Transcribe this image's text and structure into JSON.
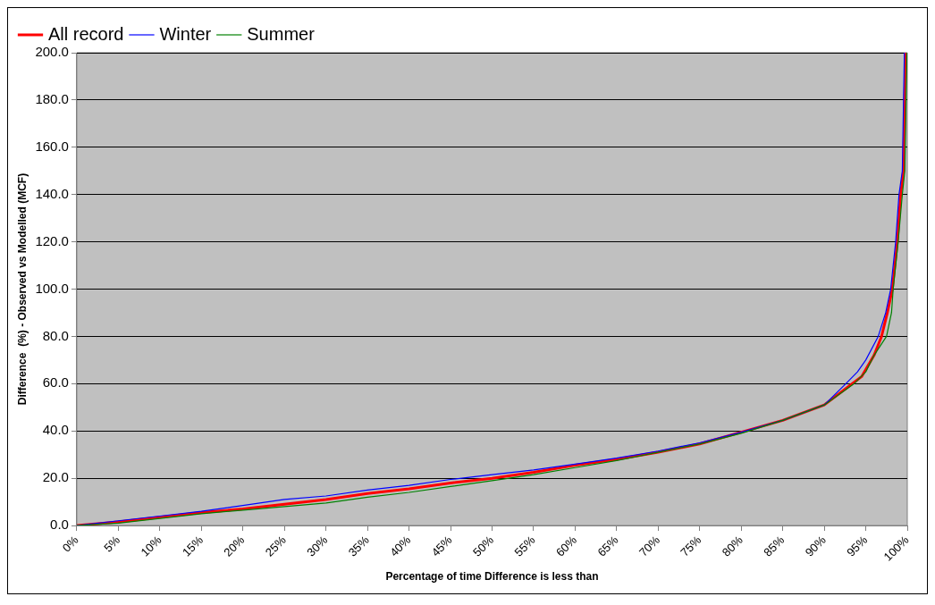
{
  "chart_data": {
    "type": "line",
    "xlabel": "Percentage of time Difference is less than",
    "ylabel": "Difference  (%) - Observed vs Modelled (MCF)",
    "xlim": [
      0,
      100
    ],
    "ylim": [
      0,
      200
    ],
    "xticks": [
      {
        "value": 0,
        "label": "0%"
      },
      {
        "value": 5,
        "label": "5%"
      },
      {
        "value": 10,
        "label": "10%"
      },
      {
        "value": 15,
        "label": "15%"
      },
      {
        "value": 20,
        "label": "20%"
      },
      {
        "value": 25,
        "label": "25%"
      },
      {
        "value": 30,
        "label": "30%"
      },
      {
        "value": 35,
        "label": "35%"
      },
      {
        "value": 40,
        "label": "40%"
      },
      {
        "value": 45,
        "label": "45%"
      },
      {
        "value": 50,
        "label": "50%"
      },
      {
        "value": 55,
        "label": "55%"
      },
      {
        "value": 60,
        "label": "60%"
      },
      {
        "value": 65,
        "label": "65%"
      },
      {
        "value": 70,
        "label": "70%"
      },
      {
        "value": 75,
        "label": "75%"
      },
      {
        "value": 80,
        "label": "80%"
      },
      {
        "value": 85,
        "label": "85%"
      },
      {
        "value": 90,
        "label": "90%"
      },
      {
        "value": 95,
        "label": "95%"
      },
      {
        "value": 100,
        "label": "100%"
      }
    ],
    "yticks": [
      {
        "value": 0,
        "label": "0.0"
      },
      {
        "value": 20,
        "label": "20.0"
      },
      {
        "value": 40,
        "label": "40.0"
      },
      {
        "value": 60,
        "label": "60.0"
      },
      {
        "value": 80,
        "label": "80.0"
      },
      {
        "value": 100,
        "label": "100.0"
      },
      {
        "value": 120,
        "label": "120.0"
      },
      {
        "value": 140,
        "label": "140.0"
      },
      {
        "value": 160,
        "label": "160.0"
      },
      {
        "value": 180,
        "label": "180.0"
      },
      {
        "value": 200,
        "label": "200.0"
      }
    ],
    "grid": "y",
    "legend": "top left",
    "marker": "none",
    "line_style": "solid",
    "series": [
      {
        "name": "All record",
        "color": "#ff0000",
        "x": [
          0,
          5,
          10,
          15,
          20,
          25,
          30,
          35,
          40,
          45,
          50,
          55,
          60,
          65,
          70,
          75,
          80,
          85,
          90,
          93,
          94.5,
          96,
          96.9,
          97.6,
          98.2,
          98.8,
          99.2,
          99.55,
          99.8
        ],
        "values": [
          0,
          1.5,
          3.5,
          5.5,
          7,
          9,
          11,
          13.5,
          15.5,
          18,
          20,
          22.5,
          25.5,
          28,
          31,
          34.5,
          39.5,
          44.5,
          51,
          59,
          63,
          72,
          80,
          90,
          100,
          120,
          140,
          150,
          200
        ]
      },
      {
        "name": "Winter",
        "color": "#0000ff",
        "x": [
          0,
          5,
          10,
          15,
          20,
          25,
          30,
          35,
          40,
          45,
          50,
          55,
          60,
          65,
          70,
          75,
          80,
          85,
          90,
          92.6,
          94,
          95,
          96.5,
          97.4,
          98,
          98.6,
          99,
          99.4,
          99.65
        ],
        "values": [
          0,
          2,
          4,
          6,
          8.5,
          11,
          12.5,
          15,
          17,
          19.5,
          21.5,
          23.5,
          26,
          28.5,
          31.5,
          35,
          39.5,
          44.5,
          51,
          60,
          65,
          70,
          80,
          90,
          100,
          120,
          140,
          150,
          200
        ]
      },
      {
        "name": "Summer",
        "color": "#008000",
        "x": [
          0,
          5,
          10,
          15,
          20,
          25,
          30,
          35,
          40,
          45,
          50,
          55,
          60,
          65,
          70,
          75,
          80,
          85,
          90,
          93.6,
          95,
          96,
          97.5,
          98.1,
          98.3,
          98.9,
          99.4,
          99.7,
          99.95
        ],
        "values": [
          0,
          1,
          3,
          5,
          6.5,
          8,
          9.5,
          12,
          14,
          16.5,
          19,
          21.5,
          24.5,
          27.5,
          31,
          34.5,
          39,
          44.5,
          51,
          60,
          65,
          72,
          80,
          90,
          100,
          120,
          140,
          150,
          200
        ]
      }
    ]
  }
}
